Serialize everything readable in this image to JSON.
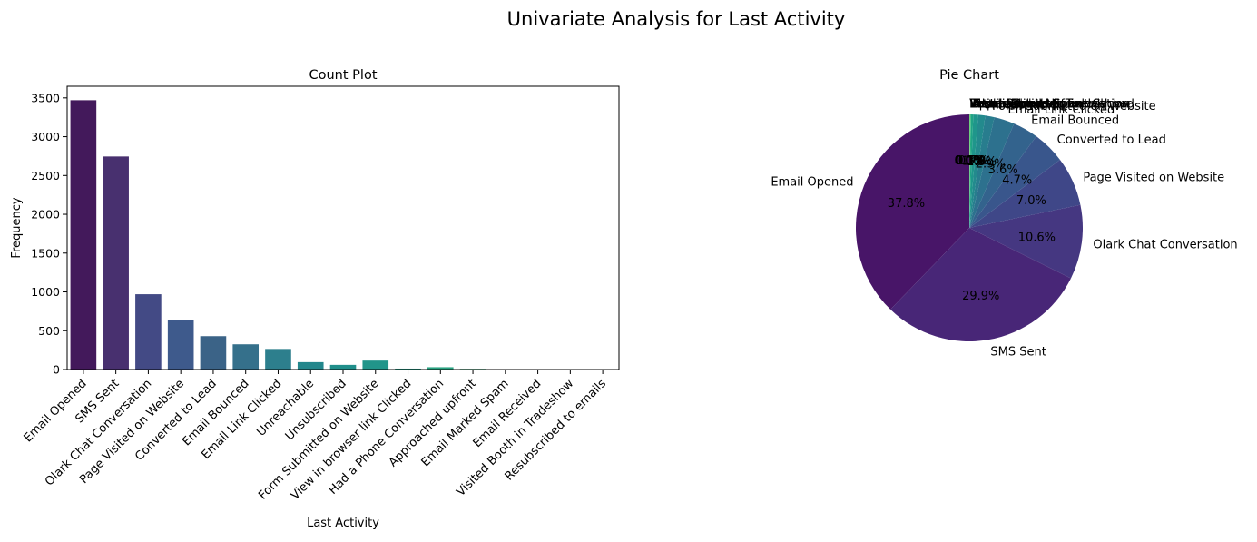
{
  "figure": {
    "suptitle": "Univariate Analysis for Last Activity"
  },
  "chart_data": [
    {
      "type": "bar",
      "title": "Count Plot",
      "xlabel": "Last Activity",
      "ylabel": "Frequency",
      "ylim": [
        0,
        3650
      ],
      "yticks": [
        0,
        500,
        1000,
        1500,
        2000,
        2500,
        3000,
        3500
      ],
      "grid": false,
      "categories": [
        "Email Opened",
        "SMS Sent",
        "Olark Chat Conversation",
        "Page Visited on Website",
        "Converted to Lead",
        "Email Bounced",
        "Email Link Clicked",
        "Unreachable",
        "Unsubscribed",
        "Form Submitted on Website",
        "View in browser link Clicked",
        "Had a Phone Conversation",
        "Approached upfront",
        "Email Marked Spam",
        "Email Received",
        "Visited Booth in Tradeshow",
        "Resubscribed to emails"
      ],
      "values": [
        3470,
        2745,
        970,
        640,
        430,
        325,
        265,
        95,
        60,
        115,
        12,
        30,
        9,
        2,
        2,
        1,
        1
      ],
      "colors": [
        "#43195b",
        "#48306f",
        "#434a85",
        "#3e5a8c",
        "#3b6387",
        "#35708b",
        "#2d7f8d",
        "#23878c",
        "#208f8b",
        "#21958a",
        "#23a088",
        "#2aa382",
        "#39ae7c",
        "#4cb56e",
        "#5eba67",
        "#78c25b",
        "#8fcc50"
      ]
    },
    {
      "type": "pie",
      "title": "Pie Chart",
      "start_angle_deg": 90,
      "direction": "counterclockwise",
      "labels": [
        "Email Opened",
        "SMS Sent",
        "Olark Chat Conversation",
        "Page Visited on Website",
        "Converted to Lead",
        "Email Bounced",
        "Email Link Clicked",
        "Form Submitted on Website",
        "Unreachable",
        "Unsubscribed",
        "Had a Phone Conversation",
        "Approached upfront",
        "View in browser link Clicked",
        "Email Received",
        "Email Marked Spam",
        "Visited Booth in Tradeshow",
        "Resubscribed to emails"
      ],
      "values": [
        37.8,
        29.9,
        10.6,
        7.0,
        4.7,
        3.6,
        2.9,
        1.3,
        1.0,
        0.7,
        0.3,
        0.1,
        0.1,
        0.02,
        0.02,
        0.01,
        0.01
      ],
      "pct_labels": [
        "37.8%",
        "29.9%",
        "10.6%",
        "7.0%",
        "4.7%",
        "3.6%",
        "2.9%",
        "1.3%",
        "1.0%",
        "0.7%",
        "0.3%",
        "0.1%",
        "0.1%",
        "0.0%",
        "0.0%",
        "0.0%",
        "0.0%"
      ],
      "colors": [
        "#481568",
        "#482677",
        "#453781",
        "#3f4788",
        "#39568c",
        "#33638d",
        "#2d718e",
        "#287d8e",
        "#238a8d",
        "#1f968b",
        "#20a386",
        "#29af7f",
        "#3dbc74",
        "#56c667",
        "#75d054",
        "#95d840",
        "#bade28"
      ]
    }
  ]
}
